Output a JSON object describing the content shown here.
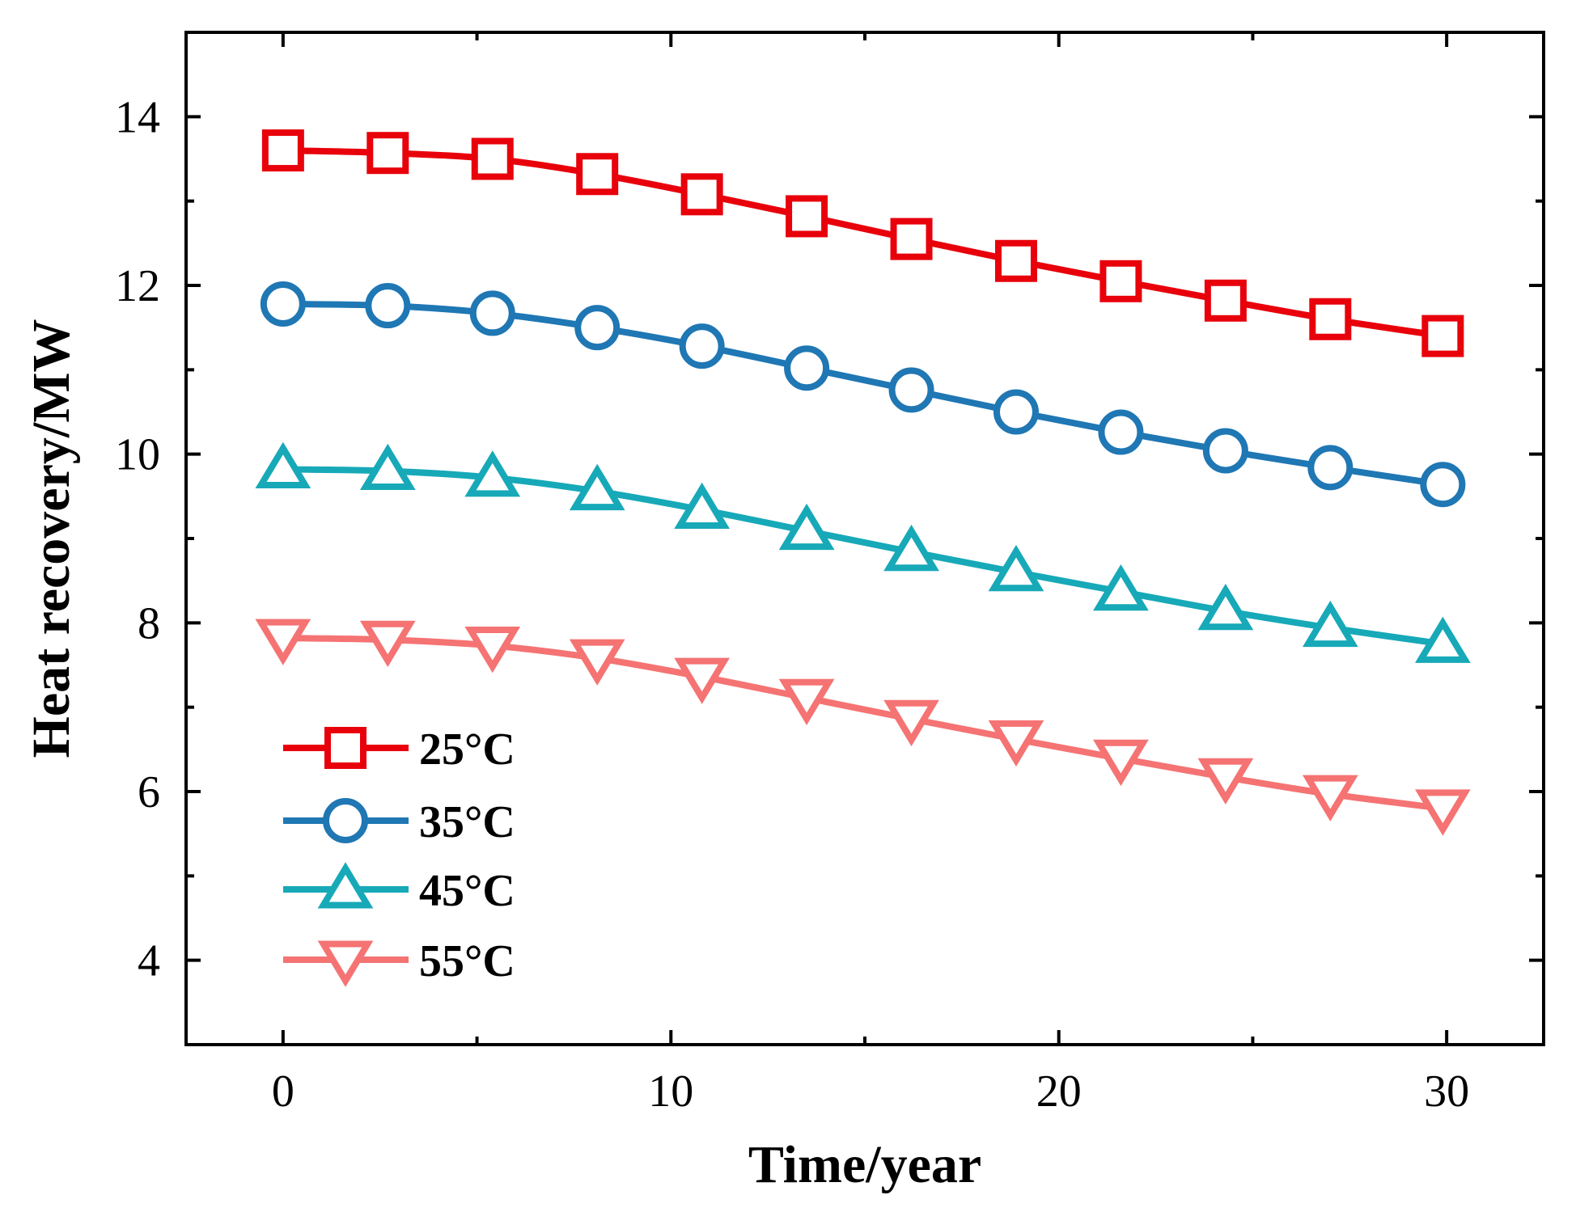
{
  "chart_data": {
    "type": "line",
    "title": "",
    "xlabel": "Time/year",
    "ylabel": "Heat recovery/MW",
    "xlim": [
      -2.5,
      32.5
    ],
    "ylim": [
      3,
      15
    ],
    "xticks": [
      0,
      10,
      20,
      30
    ],
    "yticks": [
      4,
      6,
      8,
      10,
      12,
      14
    ],
    "grid": false,
    "legend_position": "bottom-left",
    "x": [
      0,
      2.7,
      5.4,
      8.1,
      10.8,
      13.5,
      16.2,
      18.9,
      21.6,
      24.3,
      27,
      29.9
    ],
    "series": [
      {
        "name": "25°C",
        "color": "#e8000b",
        "marker": "square",
        "values": [
          13.6,
          13.57,
          13.5,
          13.32,
          13.08,
          12.82,
          12.55,
          12.29,
          12.05,
          11.82,
          11.6,
          11.4
        ]
      },
      {
        "name": "35°C",
        "color": "#1f77b4",
        "marker": "circle",
        "values": [
          11.78,
          11.76,
          11.67,
          11.5,
          11.28,
          11.02,
          10.76,
          10.5,
          10.26,
          10.04,
          9.84,
          9.64
        ]
      },
      {
        "name": "45°C",
        "color": "#17a9b8",
        "marker": "triangle-up",
        "values": [
          9.82,
          9.8,
          9.72,
          9.56,
          9.34,
          9.09,
          8.84,
          8.6,
          8.37,
          8.14,
          7.94,
          7.75
        ]
      },
      {
        "name": "55°C",
        "color": "#f57373",
        "marker": "triangle-down",
        "values": [
          7.82,
          7.8,
          7.73,
          7.58,
          7.36,
          7.11,
          6.86,
          6.62,
          6.39,
          6.17,
          5.97,
          5.8
        ]
      }
    ]
  }
}
